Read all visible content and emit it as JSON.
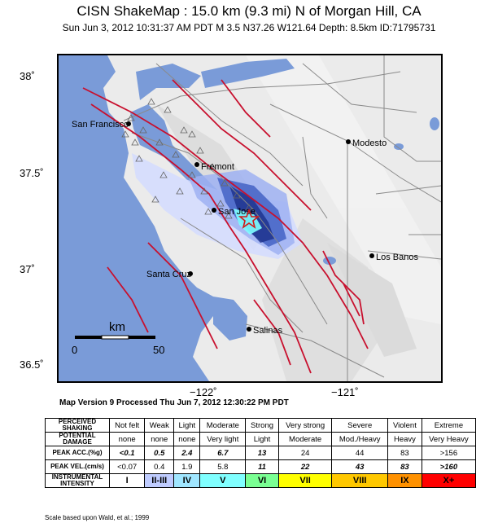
{
  "header": {
    "title": "CISN ShakeMap : 15.0 km (9.3 mi) N of Morgan Hill, CA",
    "subtitle": "Sun Jun  3, 2012 10:31:37 AM PDT   M 3.5   N37.26 W121.64   Depth: 8.5km   ID:71795731"
  },
  "map": {
    "lat_labels": [
      "38˚",
      "37.5˚",
      "37˚",
      "36.5˚"
    ],
    "lon_labels": [
      "−122˚",
      "−121˚"
    ],
    "cities": [
      {
        "name": "San Francisco"
      },
      {
        "name": "Fremont"
      },
      {
        "name": "San Jose"
      },
      {
        "name": "Modesto"
      },
      {
        "name": "Los Banos"
      },
      {
        "name": "Santa Cruz"
      },
      {
        "name": "Salinas"
      }
    ],
    "scale_bar": {
      "unit": "km",
      "start": "0",
      "end": "50"
    },
    "colors": {
      "ocean": "#7a9bd8",
      "land": "#efefef",
      "faults": "#c8102e",
      "roads": "#8a8a8a",
      "epicenter": "#d11a1a"
    }
  },
  "version_note": "Map Version 9 Processed Thu Jun  7, 2012 12:30:22 PM PDT",
  "legend": {
    "rows": [
      {
        "label": "PERCEIVED SHAKING",
        "cells": [
          "Not felt",
          "Weak",
          "Light",
          "Moderate",
          "Strong",
          "Very strong",
          "Severe",
          "Violent",
          "Extreme"
        ]
      },
      {
        "label": "POTENTIAL DAMAGE",
        "cells": [
          "none",
          "none",
          "none",
          "Very light",
          "Light",
          "Moderate",
          "Mod./Heavy",
          "Heavy",
          "Very Heavy"
        ]
      },
      {
        "label": "PEAK ACC.(%g)",
        "cells": [
          "<0.1",
          "0.5",
          "2.4",
          "6.7",
          "13",
          "24",
          "44",
          "83",
          ">156"
        ]
      },
      {
        "label": "PEAK VEL.(cm/s)",
        "cells": [
          "<0.07",
          "0.4",
          "1.9",
          "5.8",
          "11",
          "22",
          "43",
          "83",
          ">160"
        ]
      },
      {
        "label": "INSTRUMENTAL INTENSITY",
        "cells": [
          "I",
          "II-III",
          "IV",
          "V",
          "VI",
          "VII",
          "VIII",
          "IX",
          "X+"
        ]
      }
    ],
    "intensity_colors": [
      "#ffffff",
      "#bfccff",
      "#a0e6ff",
      "#80ffff",
      "#7aff93",
      "#ffff00",
      "#ffc800",
      "#ff9100",
      "#ff0000"
    ]
  },
  "scale_note": "Scale based upon Wald, et al.; 1999"
}
